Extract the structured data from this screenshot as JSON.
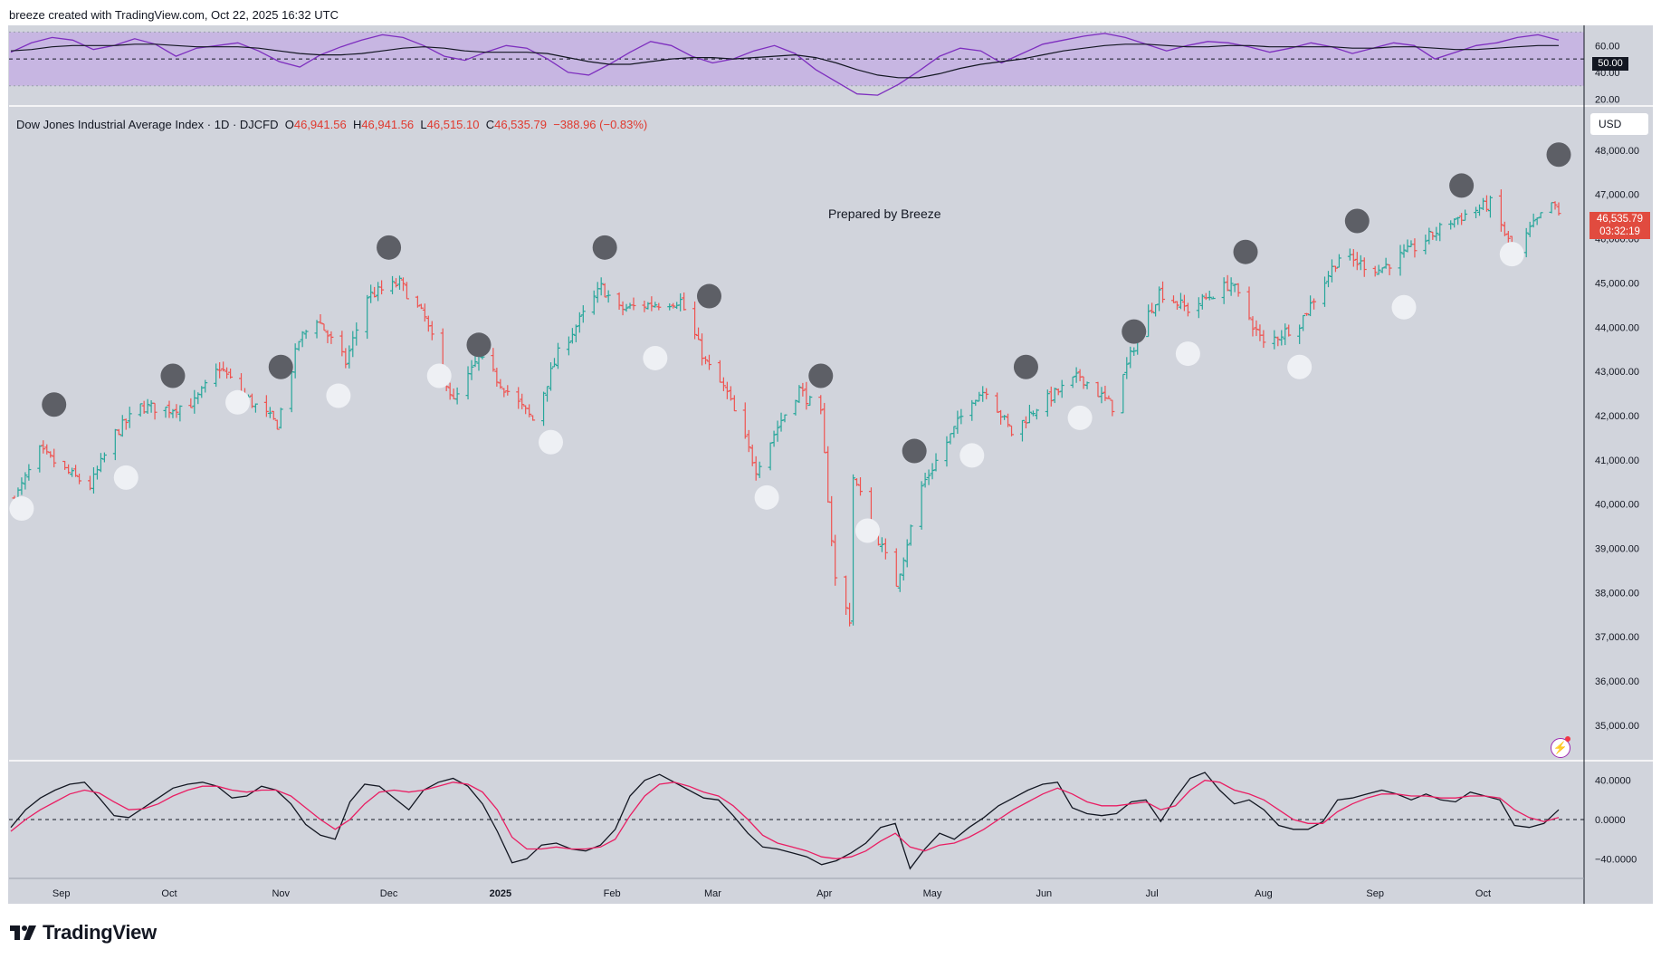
{
  "header": {
    "title": "breeze created with TradingView.com, Oct 22, 2025 16:32 UTC"
  },
  "legend": {
    "symbol": "Dow Jones Industrial Average Index · 1D · DJCFD",
    "o_label": "O",
    "o_value": "46,941.56",
    "h_label": "H",
    "h_value": "46,941.56",
    "l_label": "L",
    "l_value": "46,515.10",
    "c_label": "C",
    "c_value": "46,535.79",
    "change": "−388.96 (−0.83%)"
  },
  "watermark": "Prepared by Breeze",
  "currency": "USD",
  "price_tag": {
    "price": "46,535.79",
    "countdown": "03:32:19"
  },
  "rsi_tag": "50.00",
  "brand": {
    "name": "TradingView"
  },
  "colors": {
    "up": "#26a69a",
    "down": "#ef5350",
    "rsi": "#7e2fbf",
    "rsi_band": "#c7b6e2",
    "signal": "#e91e63",
    "macd": "#131722",
    "dark_marker": "#5d5f66",
    "light_marker": "#eef0f4"
  },
  "chart_data": [
    {
      "type": "line",
      "title": "",
      "y_ticks": [
        "60.00",
        "40.00",
        "20.00"
      ],
      "ylim": [
        15,
        75
      ],
      "band": [
        30,
        70
      ],
      "midline": 50,
      "series": [
        {
          "style": "purple",
          "values": [
            55,
            62,
            66,
            64,
            57,
            60,
            65,
            61,
            52,
            58,
            60,
            62,
            56,
            48,
            44,
            53,
            59,
            64,
            68,
            66,
            60,
            52,
            49,
            55,
            60,
            58,
            50,
            40,
            38,
            46,
            55,
            63,
            60,
            52,
            47,
            50,
            56,
            60,
            54,
            42,
            33,
            24,
            23,
            31,
            41,
            52,
            58,
            56,
            47,
            54,
            61,
            64,
            67,
            69,
            66,
            61,
            56,
            60,
            63,
            62,
            59,
            55,
            58,
            62,
            59,
            54,
            58,
            62,
            60,
            50,
            55,
            60,
            62,
            66,
            68,
            64
          ]
        },
        {
          "style": "dark",
          "values": [
            56,
            57,
            59,
            60,
            60,
            60,
            61,
            61,
            60,
            59,
            59,
            59,
            58,
            56,
            54,
            53,
            53,
            54,
            56,
            58,
            59,
            58,
            56,
            55,
            55,
            55,
            54,
            51,
            48,
            46,
            46,
            48,
            50,
            51,
            51,
            50,
            51,
            52,
            53,
            51,
            47,
            42,
            38,
            36,
            36,
            39,
            43,
            46,
            48,
            50,
            53,
            56,
            58,
            60,
            61,
            61,
            60,
            59,
            59,
            60,
            60,
            59,
            59,
            59,
            59,
            58,
            58,
            59,
            59,
            58,
            57,
            57,
            58,
            59,
            60,
            60
          ]
        }
      ]
    },
    {
      "type": "bar",
      "title": "Dow Jones Industrial Average Index · 1D · DJCFD",
      "x_ticks": [
        "Sep",
        "Oct",
        "Nov",
        "Dec",
        "2025",
        "Feb",
        "Mar",
        "Apr",
        "May",
        "Jun",
        "Jul",
        "Aug",
        "Sep",
        "Oct"
      ],
      "y_ticks": [
        "48,000.00",
        "47,000.00",
        "46,000.00",
        "45,000.00",
        "44,000.00",
        "43,000.00",
        "42,000.00",
        "41,000.00",
        "40,000.00",
        "39,000.00",
        "38,000.00",
        "37,000.00",
        "36,000.00",
        "35,000.00"
      ],
      "ylim": [
        34200,
        49000
      ],
      "close_anchors": [
        {
          "date": "2024-08-19",
          "close": 40100
        },
        {
          "date": "2024-08-26",
          "close": 41200
        },
        {
          "date": "2024-09-03",
          "close": 40700
        },
        {
          "date": "2024-09-09",
          "close": 40400
        },
        {
          "date": "2024-09-16",
          "close": 41600
        },
        {
          "date": "2024-09-23",
          "close": 42200
        },
        {
          "date": "2024-10-01",
          "close": 42150
        },
        {
          "date": "2024-10-08",
          "close": 42300
        },
        {
          "date": "2024-10-15",
          "close": 43100
        },
        {
          "date": "2024-10-21",
          "close": 42500
        },
        {
          "date": "2024-10-31",
          "close": 41800
        },
        {
          "date": "2024-11-06",
          "close": 43700
        },
        {
          "date": "2024-11-11",
          "close": 44200
        },
        {
          "date": "2024-11-19",
          "close": 43200
        },
        {
          "date": "2024-11-25",
          "close": 44700
        },
        {
          "date": "2024-12-04",
          "close": 45000
        },
        {
          "date": "2024-12-11",
          "close": 44200
        },
        {
          "date": "2024-12-19",
          "close": 42300
        },
        {
          "date": "2024-12-26",
          "close": 43300
        },
        {
          "date": "2025-01-10",
          "close": 41900
        },
        {
          "date": "2025-01-17",
          "close": 43400
        },
        {
          "date": "2025-01-29",
          "close": 44900
        },
        {
          "date": "2025-02-03",
          "close": 44400
        },
        {
          "date": "2025-02-10",
          "close": 44500
        },
        {
          "date": "2025-02-20",
          "close": 44600
        },
        {
          "date": "2025-02-27",
          "close": 43200
        },
        {
          "date": "2025-03-05",
          "close": 42500
        },
        {
          "date": "2025-03-13",
          "close": 40800
        },
        {
          "date": "2025-03-20",
          "close": 41900
        },
        {
          "date": "2025-03-25",
          "close": 42600
        },
        {
          "date": "2025-03-31",
          "close": 42000
        },
        {
          "date": "2025-04-04",
          "close": 38300
        },
        {
          "date": "2025-04-08",
          "close": 37400
        },
        {
          "date": "2025-04-09",
          "close": 40600
        },
        {
          "date": "2025-04-21",
          "close": 38200
        },
        {
          "date": "2025-04-28",
          "close": 40400
        },
        {
          "date": "2025-05-12",
          "close": 42400
        },
        {
          "date": "2025-05-16",
          "close": 42600
        },
        {
          "date": "2025-05-23",
          "close": 41600
        },
        {
          "date": "2025-05-30",
          "close": 42200
        },
        {
          "date": "2025-06-11",
          "close": 42900
        },
        {
          "date": "2025-06-20",
          "close": 42200
        },
        {
          "date": "2025-06-27",
          "close": 43800
        },
        {
          "date": "2025-07-03",
          "close": 44800
        },
        {
          "date": "2025-07-11",
          "close": 44400
        },
        {
          "date": "2025-07-23",
          "close": 45000
        },
        {
          "date": "2025-08-01",
          "close": 43600
        },
        {
          "date": "2025-08-11",
          "close": 44100
        },
        {
          "date": "2025-08-22",
          "close": 45600
        },
        {
          "date": "2025-09-02",
          "close": 45300
        },
        {
          "date": "2025-09-12",
          "close": 45800
        },
        {
          "date": "2025-09-22",
          "close": 46400
        },
        {
          "date": "2025-10-03",
          "close": 46800
        },
        {
          "date": "2025-10-10",
          "close": 45600
        },
        {
          "date": "2025-10-14",
          "close": 46200
        },
        {
          "date": "2025-10-20",
          "close": 46800
        },
        {
          "date": "2025-10-22",
          "close": 46535.79
        }
      ],
      "dark_markers": [
        {
          "date": "2024-08-30",
          "value": 42250
        },
        {
          "date": "2024-10-02",
          "value": 42900
        },
        {
          "date": "2024-11-01",
          "value": 43100
        },
        {
          "date": "2024-12-01",
          "value": 45800
        },
        {
          "date": "2024-12-26",
          "value": 43600
        },
        {
          "date": "2025-01-30",
          "value": 45800
        },
        {
          "date": "2025-02-28",
          "value": 44700
        },
        {
          "date": "2025-03-31",
          "value": 42900
        },
        {
          "date": "2025-04-26",
          "value": 41200
        },
        {
          "date": "2025-05-27",
          "value": 43100
        },
        {
          "date": "2025-06-26",
          "value": 43900
        },
        {
          "date": "2025-07-27",
          "value": 45700
        },
        {
          "date": "2025-08-27",
          "value": 46400
        },
        {
          "date": "2025-09-25",
          "value": 47200
        },
        {
          "date": "2025-10-22",
          "value": 47900
        }
      ],
      "light_markers": [
        {
          "date": "2024-08-21",
          "value": 39900
        },
        {
          "date": "2024-09-19",
          "value": 40600
        },
        {
          "date": "2024-10-20",
          "value": 42300
        },
        {
          "date": "2024-11-17",
          "value": 42450
        },
        {
          "date": "2024-12-15",
          "value": 42900
        },
        {
          "date": "2025-01-15",
          "value": 41400
        },
        {
          "date": "2025-02-13",
          "value": 43300
        },
        {
          "date": "2025-03-16",
          "value": 40150
        },
        {
          "date": "2025-04-13",
          "value": 39400
        },
        {
          "date": "2025-05-12",
          "value": 41100
        },
        {
          "date": "2025-06-11",
          "value": 41950
        },
        {
          "date": "2025-07-11",
          "value": 43400
        },
        {
          "date": "2025-08-11",
          "value": 43100
        },
        {
          "date": "2025-09-09",
          "value": 44450
        },
        {
          "date": "2025-10-09",
          "value": 45650
        }
      ]
    },
    {
      "type": "line",
      "title": "",
      "y_ticks": [
        "40.0000",
        "0.0000",
        "−40.0000"
      ],
      "ylim": [
        -60,
        60
      ],
      "zero_line": 0,
      "series": [
        {
          "style": "dark",
          "values": [
            -8,
            10,
            22,
            30,
            36,
            38,
            22,
            4,
            2,
            12,
            22,
            32,
            36,
            38,
            34,
            22,
            24,
            34,
            30,
            16,
            -5,
            -16,
            -20,
            18,
            36,
            34,
            22,
            10,
            30,
            38,
            42,
            34,
            16,
            -12,
            -44,
            -40,
            -26,
            -24,
            -30,
            -32,
            -26,
            -10,
            24,
            40,
            46,
            38,
            30,
            22,
            20,
            4,
            -14,
            -28,
            -30,
            -34,
            -38,
            -46,
            -42,
            -34,
            -24,
            -8,
            -4,
            -50,
            -30,
            -14,
            -20,
            -8,
            2,
            14,
            22,
            30,
            36,
            38,
            12,
            6,
            4,
            6,
            18,
            20,
            -2,
            22,
            42,
            48,
            30,
            16,
            20,
            10,
            -6,
            -10,
            -10,
            -2,
            20,
            22,
            26,
            30,
            26,
            20,
            26,
            20,
            18,
            28,
            24,
            20,
            -6,
            -8,
            -4,
            10
          ]
        },
        {
          "style": "pink",
          "values": [
            -12,
            0,
            10,
            18,
            26,
            30,
            27,
            18,
            10,
            11,
            16,
            24,
            30,
            34,
            34,
            30,
            28,
            30,
            30,
            24,
            12,
            0,
            -10,
            0,
            16,
            28,
            30,
            28,
            30,
            34,
            38,
            36,
            28,
            10,
            -18,
            -30,
            -30,
            -28,
            -30,
            -30,
            -28,
            -20,
            4,
            24,
            36,
            38,
            34,
            28,
            24,
            14,
            0,
            -16,
            -24,
            -28,
            -32,
            -38,
            -40,
            -38,
            -32,
            -22,
            -14,
            -28,
            -32,
            -26,
            -24,
            -18,
            -10,
            0,
            10,
            18,
            26,
            32,
            26,
            18,
            14,
            14,
            16,
            18,
            10,
            14,
            30,
            40,
            38,
            30,
            26,
            20,
            10,
            0,
            -4,
            -4,
            8,
            16,
            22,
            26,
            26,
            24,
            24,
            22,
            22,
            24,
            24,
            22,
            10,
            2,
            -2,
            2
          ]
        }
      ]
    }
  ]
}
